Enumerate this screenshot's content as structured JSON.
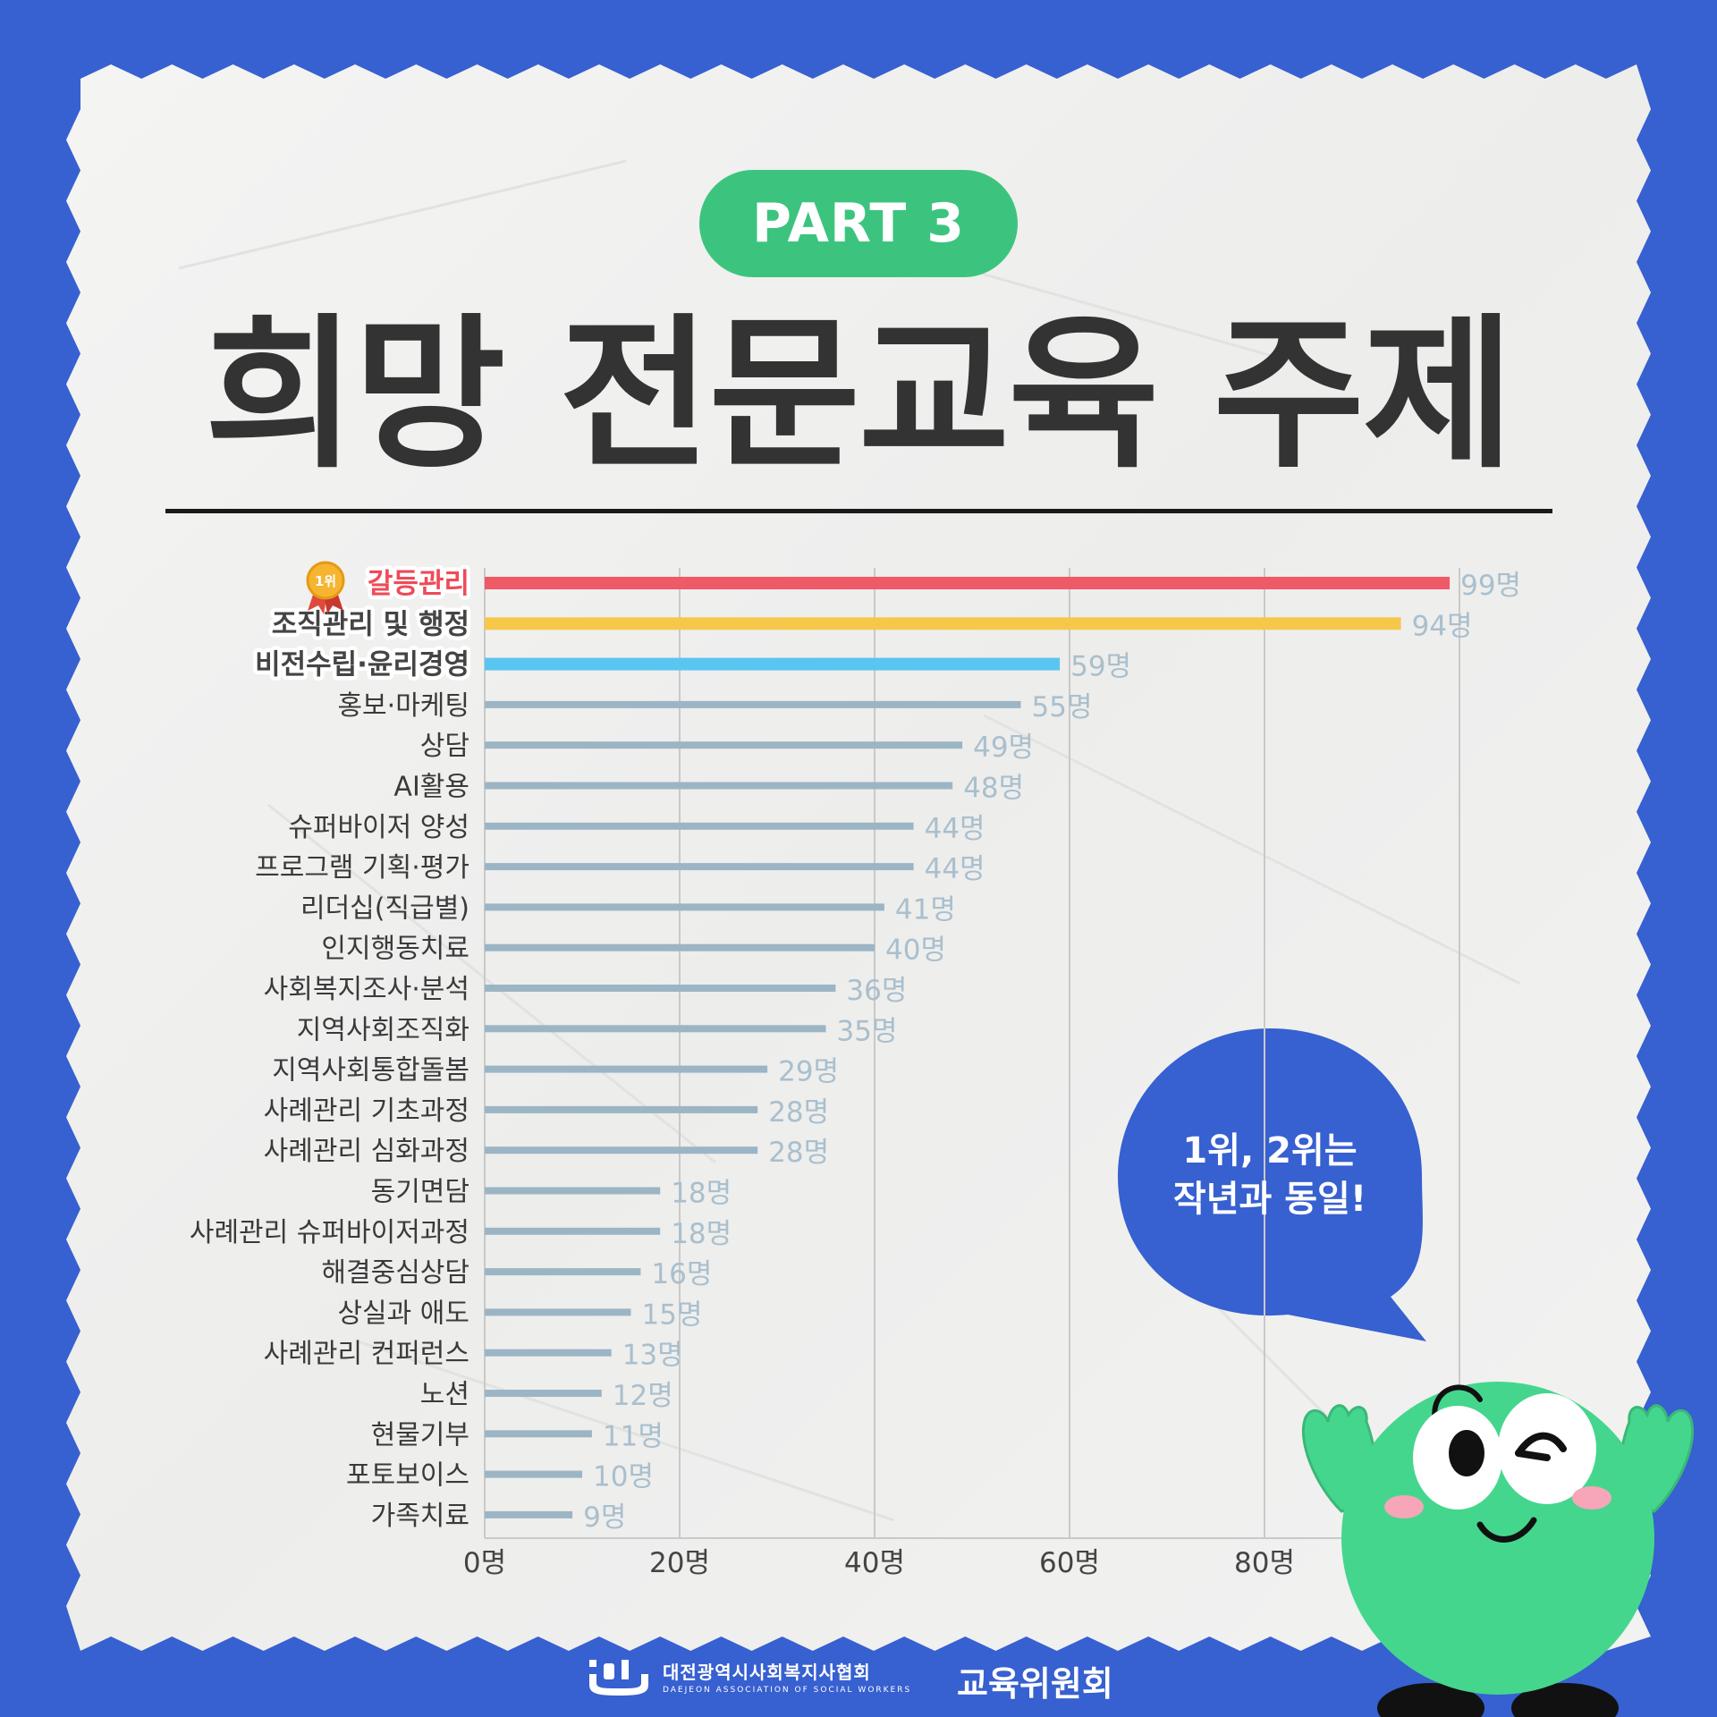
{
  "part_label": "PART 3",
  "title": "희망 전문교육 주제",
  "chart_data": {
    "type": "bar",
    "orientation": "horizontal",
    "categories": [
      "갈등관리",
      "조직관리 및 행정",
      "비전수립·윤리경영",
      "홍보·마케팅",
      "상담",
      "AI활용",
      "슈퍼바이저 양성",
      "프로그램 기획·평가",
      "리더십(직급별)",
      "인지행동치료",
      "사회복지조사·분석",
      "지역사회조직화",
      "지역사회통합돌봄",
      "사례관리 기초과정",
      "사례관리 심화과정",
      "동기면담",
      "사례관리 슈퍼바이저과정",
      "해결중심상담",
      "상실과 애도",
      "사례관리 컨퍼런스",
      "노션",
      "현물기부",
      "포토보이스",
      "가족치료"
    ],
    "values": [
      99,
      94,
      59,
      55,
      49,
      48,
      44,
      44,
      41,
      40,
      36,
      35,
      29,
      28,
      28,
      18,
      18,
      16,
      15,
      13,
      12,
      11,
      10,
      9
    ],
    "value_labels": [
      "99명",
      "94명",
      "59명",
      "55명",
      "49명",
      "48명",
      "44명",
      "44명",
      "41명",
      "40명",
      "36명",
      "35명",
      "29명",
      "28명",
      "28명",
      "18명",
      "18명",
      "16명",
      "15명",
      "13명",
      "12명",
      "11명",
      "10명",
      "9명"
    ],
    "x_ticks": [
      "0명",
      "20명",
      "40명",
      "60명",
      "80명"
    ],
    "xlim": [
      0,
      100
    ],
    "grid": true,
    "rank_badge": "1위",
    "colors": {
      "top1": "#ee5a66",
      "top2": "#f6c84a",
      "top3": "#5ac5f1",
      "rest": "#9cb5c5",
      "value_text": "#a9bfcd",
      "highlight_label": "#ee4b58"
    }
  },
  "speech_bubble": {
    "line1": "1위, 2위는",
    "line2": "작년과 동일!"
  },
  "footer": {
    "org_name_ko": "대전광역시사회복지사협회",
    "org_name_en": "DAEJEON ASSOCIATION OF SOCIAL WORKERS",
    "committee": "교육위원회"
  }
}
